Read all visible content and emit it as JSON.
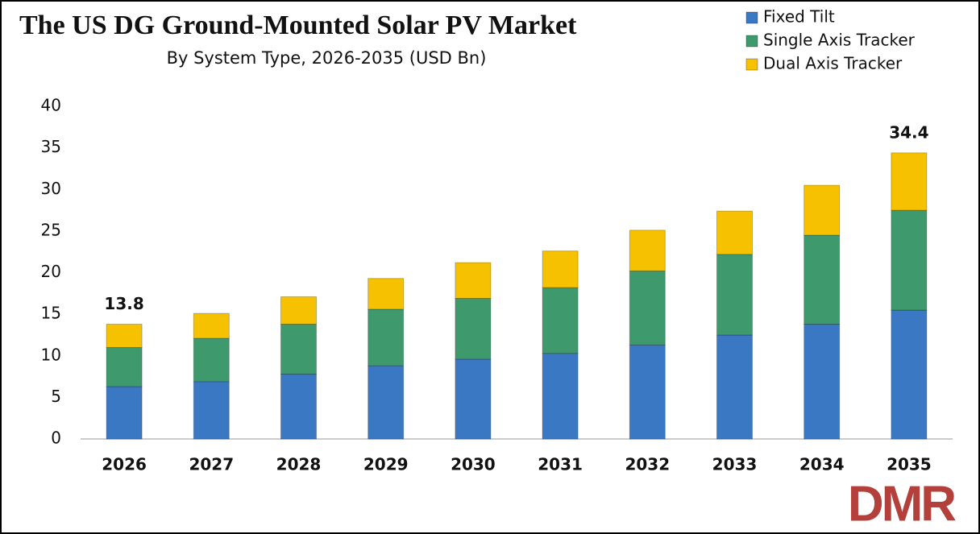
{
  "chart_data": {
    "type": "stacked_bar",
    "title": "The US DG Ground-Mounted Solar PV Market",
    "subtitle": "By System Type, 2026-2035 (USD Bn)",
    "categories": [
      "2026",
      "2027",
      "2028",
      "2029",
      "2030",
      "2031",
      "2032",
      "2033",
      "2034",
      "2035"
    ],
    "series": [
      {
        "name": "Fixed Tilt",
        "color": "#3b78c4",
        "values": [
          6.3,
          6.9,
          7.8,
          8.8,
          9.6,
          10.3,
          11.3,
          12.5,
          13.8,
          15.5
        ]
      },
      {
        "name": "Single Axis Tracker",
        "color": "#3e9a6d",
        "values": [
          4.7,
          5.2,
          6.0,
          6.8,
          7.3,
          7.9,
          8.9,
          9.7,
          10.7,
          12.0
        ]
      },
      {
        "name": "Dual Axis Tracker",
        "color": "#f6c200",
        "values": [
          2.8,
          3.0,
          3.3,
          3.7,
          4.3,
          4.4,
          4.9,
          5.2,
          6.0,
          6.9
        ]
      }
    ],
    "total_labels": [
      13.8,
      null,
      null,
      null,
      null,
      null,
      null,
      null,
      null,
      34.4
    ],
    "ylim": [
      0,
      40
    ],
    "yticks": [
      0,
      5,
      10,
      15,
      20,
      25,
      30,
      35,
      40
    ],
    "grid": false,
    "legend": "top-right"
  },
  "logo": "DMR"
}
